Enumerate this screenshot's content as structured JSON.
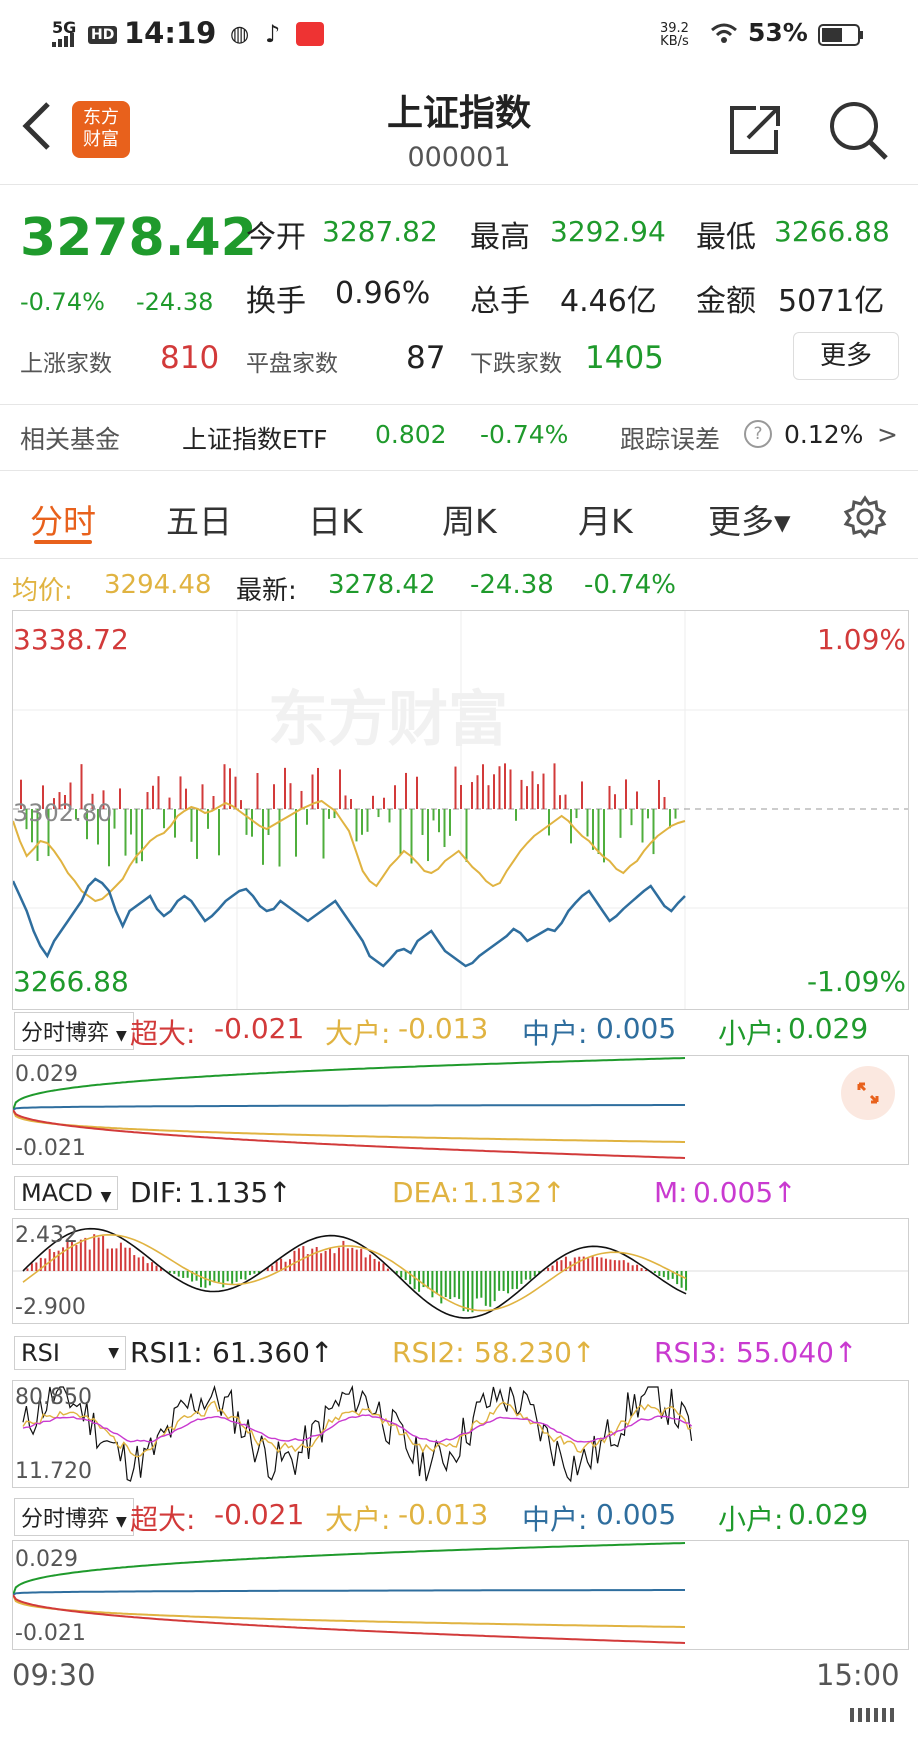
{
  "status_bar": {
    "network": "5G",
    "hd": "HD",
    "time": "14:19",
    "speed_top": "39.2",
    "speed_bottom": "KB/s",
    "battery": "53%"
  },
  "header": {
    "title": "上证指数",
    "code": "000001",
    "logo_text_1": "东方",
    "logo_text_2": "财富",
    "back_icon": "chevron-left-icon",
    "share_icon": "share-icon",
    "search_icon": "search-icon"
  },
  "quote": {
    "price": "3278.42",
    "change_pct": "-0.74%",
    "change": "-24.38",
    "open_label": "今开",
    "open": "3287.82",
    "high_label": "最高",
    "high": "3292.94",
    "low_label": "最低",
    "low": "3266.88",
    "turnover_label": "换手",
    "turnover": "0.96%",
    "volume_label": "总手",
    "volume": "4.46亿",
    "amount_label": "金额",
    "amount": "5071亿",
    "up_label": "上涨家数",
    "up": "810",
    "flat_label": "平盘家数",
    "flat": "87",
    "down_label": "下跌家数",
    "down": "1405",
    "more_button": "更多"
  },
  "fund": {
    "label": "相关基金",
    "name": "上证指数ETF",
    "price": "0.802",
    "change": "-0.74%",
    "tracking_label": "跟踪误差",
    "tracking_value": "0.12%",
    "arrow": ">"
  },
  "tabs": [
    {
      "label": "分时"
    },
    {
      "label": "五日"
    },
    {
      "label": "日K"
    },
    {
      "label": "周K"
    },
    {
      "label": "月K"
    },
    {
      "label": "更多▾"
    }
  ],
  "intraday": {
    "avg_label": "均价:",
    "avg": "3294.48",
    "latest_label": "最新:",
    "latest": "3278.42",
    "change": "-24.38",
    "change_pct": "-0.74%",
    "y_top": "3338.72",
    "y_mid": "3302.80",
    "y_bottom": "3266.88",
    "pct_top": "1.09%",
    "pct_bottom": "-1.09%",
    "watermark": "东方财富",
    "time_start": "09:30",
    "time_end": "15:00"
  },
  "flow1": {
    "selector": "分时博弈",
    "super_label": "超大:",
    "super": "-0.021",
    "big_label": "大户:",
    "big": "-0.013",
    "mid_label": "中户:",
    "mid": "0.005",
    "small_label": "小户:",
    "small": "0.029",
    "y_top": "0.029",
    "y_bottom": "-0.021"
  },
  "macd": {
    "selector": "MACD",
    "dif_label": "DIF:",
    "dif": "1.135↑",
    "dea_label": "DEA:",
    "dea": "1.132↑",
    "m_label": "M:",
    "m": "0.005↑",
    "y_top": "2.432",
    "y_bottom": "-2.900"
  },
  "rsi": {
    "selector": "RSI",
    "rsi1_label": "RSI1:",
    "rsi1": "61.360↑",
    "rsi2_label": "RSI2:",
    "rsi2": "58.230↑",
    "rsi3_label": "RSI3:",
    "rsi3": "55.040↑",
    "y_top": "80.850",
    "y_bottom": "11.720"
  },
  "flow2": {
    "selector": "分时博弈",
    "super_label": "超大:",
    "super": "-0.021",
    "big_label": "大户:",
    "big": "-0.013",
    "mid_label": "中户:",
    "mid": "0.005",
    "small_label": "小户:",
    "small": "0.029",
    "y_top": "0.029",
    "y_bottom": "-0.021"
  },
  "colors": {
    "red": "#d23a3a",
    "green": "#1f9a2c",
    "avg_line": "#e0b341",
    "price_line": "#2f6e9e",
    "accent": "#e8611c"
  }
}
